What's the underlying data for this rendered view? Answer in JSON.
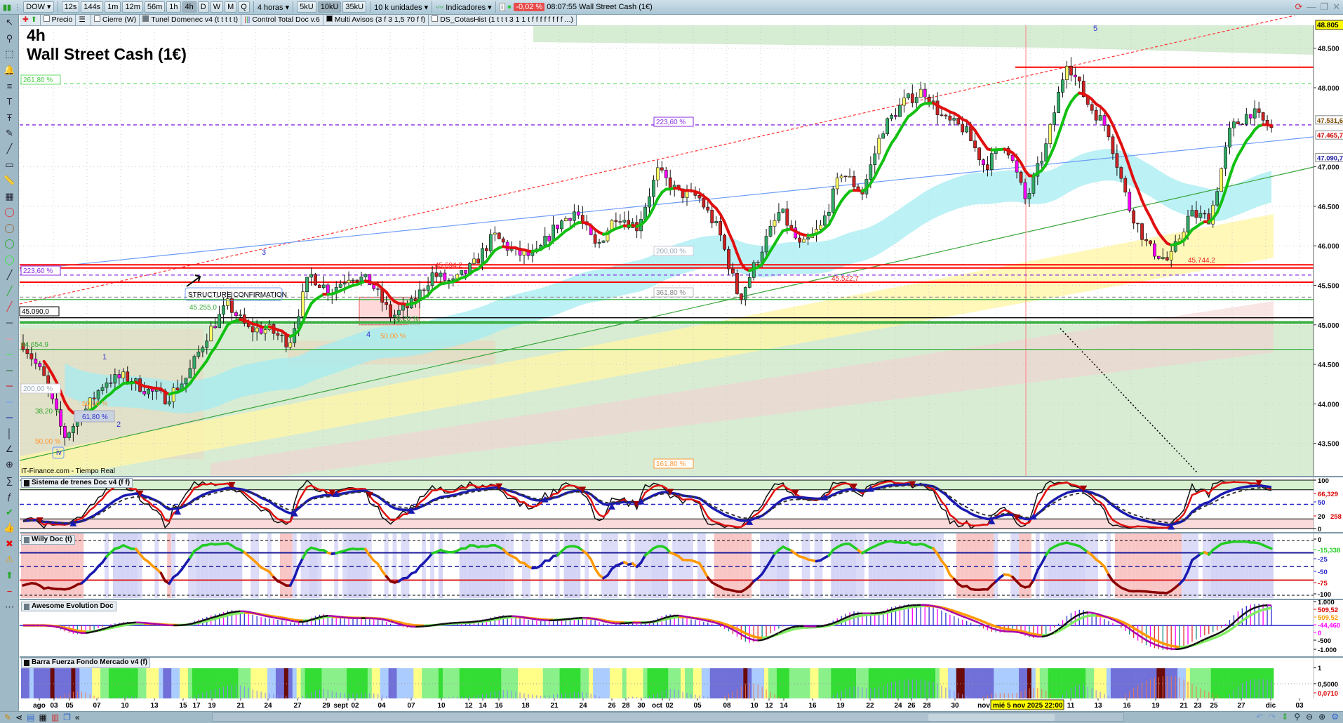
{
  "toolbar": {
    "symbol": "DOW",
    "timeframes": [
      "12s",
      "144s",
      "1m",
      "12m",
      "56m",
      "1h",
      "4h",
      "D",
      "W",
      "M",
      "Q"
    ],
    "active_timeframe": "4h",
    "period_select": "4 horas",
    "unit_buttons": [
      "5kU",
      "10kU",
      "35kU"
    ],
    "active_unit": "10kU",
    "units_select": "10 k unidades",
    "indicators_label": "Indicadores",
    "change_pct": "-0,02 %",
    "time": "08:07:55",
    "instrument": "Wall Street Cash (1€)",
    "change_color": "#e84b4b"
  },
  "indicator_tabs": [
    {
      "label": "Precio",
      "icon": "checkbox"
    },
    {
      "label": "",
      "icon": "list-icon"
    },
    {
      "label": "Cierre (W)",
      "icon": "checkbox"
    },
    {
      "label": "Tunel Domenec v4 (t t t t t)",
      "icon": "gray-square"
    },
    {
      "label": "Control Total Doc v.6",
      "icon": "bars-icon"
    },
    {
      "label": "Multi Avisos (3 f 3 1,5 70 f f)",
      "icon": "black-square"
    },
    {
      "label": "DS_CotasHist (1 t t t 3 1 1 t f f f f f f f f ...)",
      "icon": "checkbox"
    }
  ],
  "left_tools": [
    "pointer",
    "zoom",
    "zoom-area",
    "alert-bell",
    "fibonacci",
    "text",
    "text-t",
    "brush",
    "trendline",
    "rectangle",
    "ruler",
    "measure",
    "ellipse-red",
    "ellipse-brown",
    "ellipse-green",
    "ellipse-lime",
    "line-black",
    "line-green",
    "line-red",
    "line-dark",
    "line-salmon",
    "line-lime",
    "line-darkgreen",
    "line-red2",
    "line-lightblue",
    "line-navy",
    "vertical-line",
    "angle",
    "circle-add",
    "formula",
    "formula-abc",
    "check",
    "thumbs-up",
    "close-x",
    "warning",
    "arrow-up",
    "minus",
    "more"
  ],
  "chart": {
    "timeframe_label": "4h",
    "title": "Wall Street Cash (1€)",
    "source": "IT-Finance.com - Tiempo Real",
    "price_axis": [
      "48.500",
      "48.000",
      "47.000",
      "46.500",
      "46.000",
      "45.500",
      "45.000",
      "44.500",
      "44.000",
      "43.500"
    ],
    "price_axis_values": [
      48.5,
      48.0,
      47.0,
      46.5,
      46.0,
      45.5,
      45.0,
      44.5,
      44.0,
      43.5
    ],
    "last_price": "48.805",
    "markers": [
      {
        "text": "47.531,6",
        "color": "#7a4a00"
      },
      {
        "text": "47.465,7",
        "color": "#d00000"
      },
      {
        "text": "47.090,7",
        "color": "#1a1aa0"
      }
    ],
    "fib_labels": {
      "f261": "261,80 %",
      "f223a": "223,60 %",
      "f223b": "223,60 %",
      "f200a": "200,00 %",
      "f200b": "200,00 %",
      "f361": "361,80 %",
      "f161": "161,80 %",
      "f382a": "38,20 %",
      "f382b": "38,20 %",
      "f50a": "50,00 %",
      "f50b": "50,00 %",
      "f50c": "50,00 %",
      "f618": "61,80 %"
    },
    "level_labels": {
      "l45090": "45.090,0",
      "l45255": "45.255,0",
      "l44654": "44.654,9",
      "l45694": "45.694,2",
      "l45522": "45.522,7",
      "l45744": "45.744,2"
    },
    "structure_label": "STRUCTURE CONFIRMATION",
    "waves": {
      "w1": "1",
      "w2": "2",
      "w3": "3",
      "w4": "4",
      "w5": "5",
      "wiv": "iv"
    },
    "price_waypoints": [
      44.77,
      44.34,
      43.58,
      43.91,
      44.29,
      44.34,
      44.18,
      44.07,
      44.34,
      44.88,
      45.26,
      44.94,
      44.94,
      44.77,
      45.64,
      45.42,
      45.64,
      45.53,
      45.1,
      45.26,
      45.64,
      45.53,
      45.75,
      46.13,
      45.91,
      45.86,
      46.24,
      46.45,
      45.97,
      46.4,
      46.24,
      46.94,
      46.67,
      46.62,
      46.18,
      45.32,
      45.91,
      46.45,
      45.97,
      46.24,
      46.94,
      46.67,
      47.48,
      47.81,
      47.97,
      47.59,
      47.48,
      47.0,
      47.32,
      46.56,
      47.27,
      48.35,
      47.81,
      47.48,
      46.51,
      45.97,
      45.8,
      46.4,
      46.35,
      47.48,
      47.7,
      47.48
    ],
    "horizontal_levels": [
      {
        "price": 48.26,
        "color": "#ff0000",
        "style": "solid"
      },
      {
        "price": 48.05,
        "color": "#66dd66",
        "style": "dashed"
      },
      {
        "price": 47.53,
        "color": "#8a2be2",
        "style": "dashed"
      },
      {
        "price": 45.76,
        "color": "#ff0000",
        "style": "solid"
      },
      {
        "price": 45.72,
        "color": "#ff0000",
        "style": "solid"
      },
      {
        "price": 45.63,
        "color": "#8a2be2",
        "style": "dashed"
      },
      {
        "price": 45.54,
        "color": "#ff0000",
        "style": "solid"
      },
      {
        "price": 45.35,
        "color": "#999999",
        "style": "dashed"
      },
      {
        "price": 45.32,
        "color": "#3cb043",
        "style": "solid"
      },
      {
        "price": 45.09,
        "color": "#000000",
        "style": "solid"
      },
      {
        "price": 45.03,
        "color": "#3cb043",
        "style": "thick"
      },
      {
        "price": 44.69,
        "color": "#3cb043",
        "style": "solid"
      }
    ]
  },
  "panels": {
    "sistema": {
      "title": "Sistema de trenes Doc v4 (f f)",
      "axis": [
        "100",
        "66,329",
        "50",
        "20",
        "258",
        "0"
      ]
    },
    "willy": {
      "title": "Willy Doc (t)",
      "axis": [
        "0",
        "-15,338",
        "-25",
        "-50",
        "-75",
        "-100"
      ]
    },
    "awesome": {
      "title": "Awesome Evolution Doc",
      "axis": [
        "1.000",
        "509,52",
        "509,52",
        "-44,460",
        "0",
        "-500",
        "-1.000"
      ]
    },
    "barra": {
      "title": "Barra Fuerza Fondo Mercado v4 (f)",
      "axis": [
        "1",
        "0,5000",
        "0,0710"
      ]
    }
  },
  "time_axis": {
    "ticks": [
      "ago",
      "03",
      "05",
      "07",
      "10",
      "13",
      "15",
      "17",
      "19",
      "21",
      "24",
      "27",
      "29",
      "sept",
      "02",
      "04",
      "07",
      "10",
      "12",
      "14",
      "16",
      "18",
      "21",
      "24",
      "26",
      "28",
      "30",
      "oct",
      "02",
      "05",
      "08",
      "10",
      "12",
      "14",
      "16",
      "19",
      "22",
      "24",
      "26",
      "28",
      "30",
      "nov",
      "11",
      "13",
      "16",
      "19",
      "21",
      "23",
      "25",
      "27",
      "dic",
      "03"
    ],
    "crosshair_label": "mié 5 nov 2025 22:00"
  }
}
